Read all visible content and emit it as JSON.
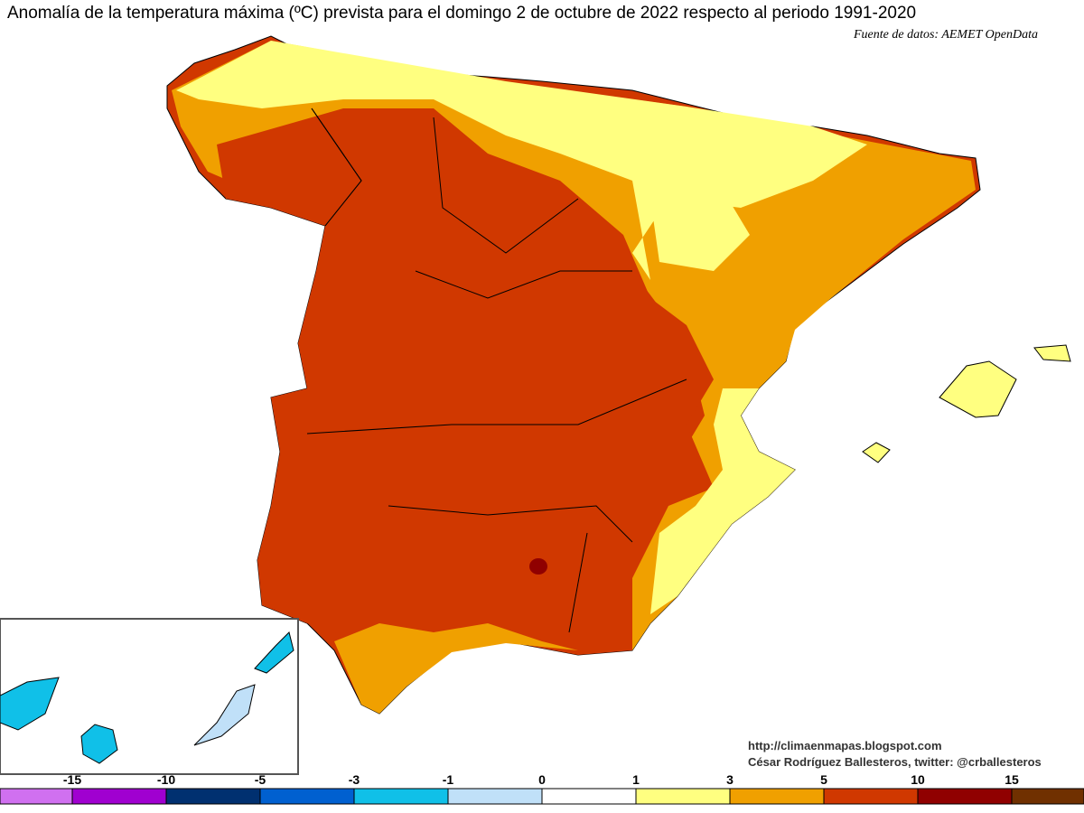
{
  "header": {
    "title": "Anomalía de la temperatura máxima (ºC) prevista para el domingo 2 de octubre de 2022 respecto al periodo 1991-2020",
    "source": "Fuente de datos: AEMET OpenData"
  },
  "credits": {
    "url": "http://climaenmapas.blogspot.com",
    "author": "César Rodríguez Ballesteros, twitter: @crballesteros"
  },
  "legend": {
    "ticks": [
      "-15",
      "-10",
      "-5",
      "-3",
      "-1",
      "0",
      "1",
      "3",
      "5",
      "10",
      "15"
    ],
    "colors": [
      "#d070f0",
      "#a000d0",
      "#003070",
      "#0060d0",
      "#10c0e8",
      "#c0e0f8",
      "#ffffff",
      "#ffff80",
      "#f0a000",
      "#d03800",
      "#900000",
      "#703000"
    ]
  }
}
